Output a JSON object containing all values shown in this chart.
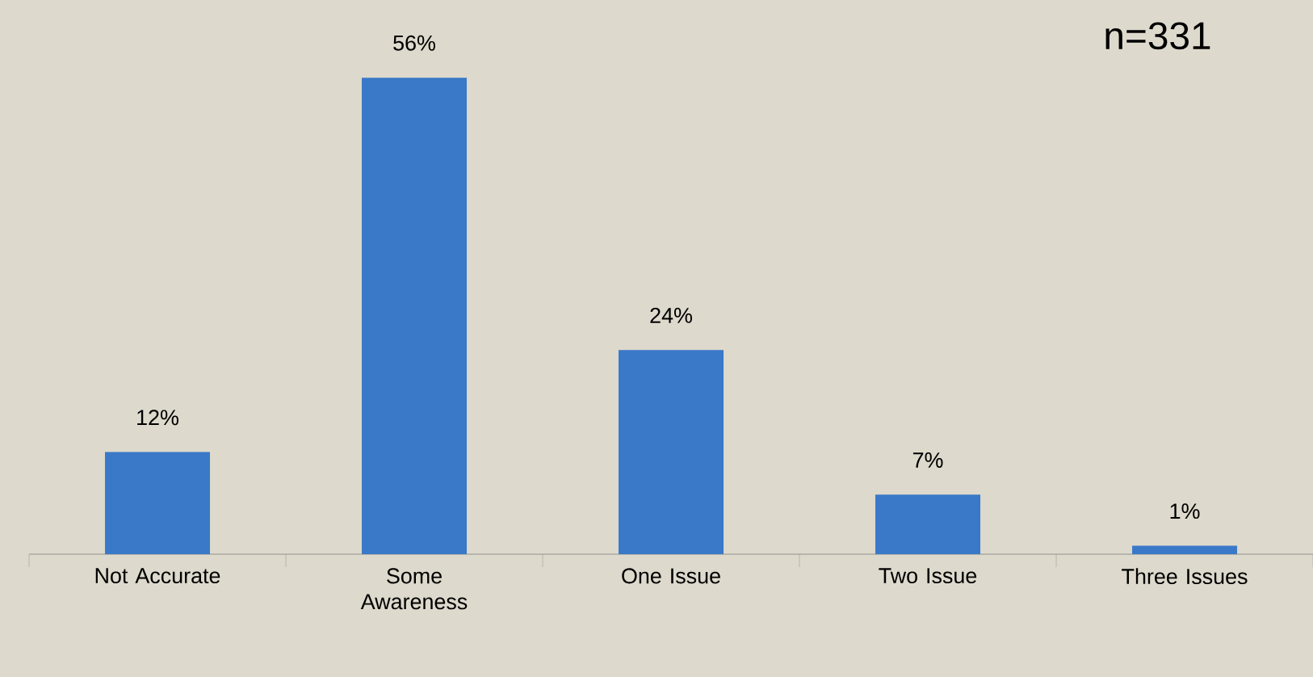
{
  "chart_data": {
    "type": "bar",
    "categories": [
      "Not Accurate",
      "Some Awareness",
      "One Issue",
      "Two Issue",
      "Three Issues"
    ],
    "values": [
      12,
      56,
      24,
      7,
      1
    ],
    "value_labels": [
      "12%",
      "56%",
      "24%",
      "7%",
      "1%"
    ],
    "color": "#3a78c8",
    "annotations": [
      "n=331"
    ]
  }
}
